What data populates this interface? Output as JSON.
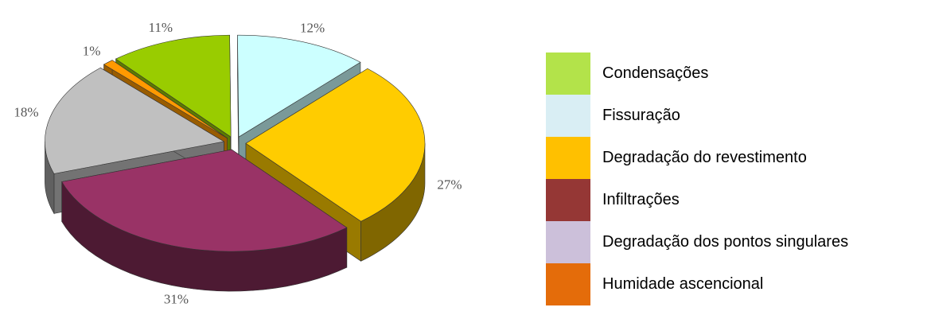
{
  "chart_data": {
    "type": "pie3d",
    "categories": [
      "Condensações",
      "Fissuração",
      "Degradação do revestimento",
      "Infiltrações",
      "Degradação dos pontos singulares",
      "Humidade ascencional"
    ],
    "values": [
      11,
      12,
      27,
      31,
      18,
      1
    ],
    "value_labels": [
      "11%",
      "12%",
      "27%",
      "31%",
      "18%",
      "1%"
    ],
    "colors": [
      "#99cc00",
      "#ccffff",
      "#ffcc00",
      "#993366",
      "#c0c0c0",
      "#ff9900"
    ],
    "legend_colors": [
      "#b3e34a",
      "#d9eef4",
      "#ffc000",
      "#953735",
      "#ccc0da",
      "#e46c0a"
    ],
    "legend": "right"
  }
}
